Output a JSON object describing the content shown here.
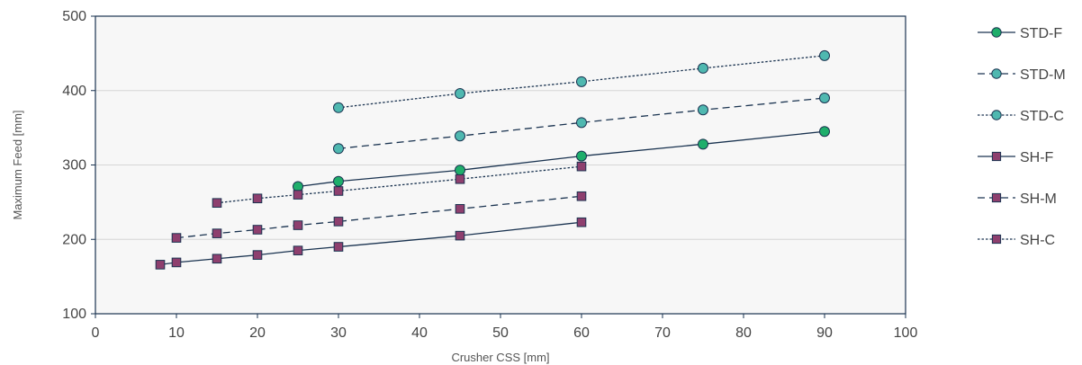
{
  "chart_data": {
    "type": "line",
    "title": "",
    "xlabel": "Crusher  CSS  [mm]",
    "ylabel": "Maximum Feed [mm]",
    "xlim": [
      0,
      100
    ],
    "ylim": [
      100,
      500
    ],
    "xticks": [
      0,
      10,
      20,
      30,
      40,
      50,
      60,
      70,
      80,
      90,
      100
    ],
    "yticks": [
      100,
      200,
      300,
      400,
      500
    ],
    "grid": "horizontal",
    "legend_position": "right",
    "plot_background": "#f7f7f7",
    "series": [
      {
        "name": "STD-F",
        "marker": "circle",
        "fill": "#1fae6b",
        "line_style": "solid",
        "line_color": "#1a3350",
        "x": [
          25,
          30,
          45,
          60,
          75,
          90
        ],
        "y": [
          271,
          278,
          293,
          312,
          328,
          345
        ]
      },
      {
        "name": "STD-M",
        "marker": "circle",
        "fill": "#4fb8b0",
        "line_style": "dashed",
        "line_color": "#1a3350",
        "x": [
          30,
          45,
          60,
          75,
          90
        ],
        "y": [
          322,
          339,
          357,
          374,
          390
        ]
      },
      {
        "name": "STD-C",
        "marker": "circle",
        "fill": "#4fb8b0",
        "line_style": "dotted",
        "line_color": "#1a3350",
        "x": [
          30,
          45,
          60,
          75,
          90
        ],
        "y": [
          377,
          396,
          412,
          430,
          447
        ]
      },
      {
        "name": "SH-F",
        "marker": "square",
        "fill": "#8e3f6e",
        "line_style": "solid",
        "line_color": "#1a3350",
        "x": [
          8,
          10,
          15,
          20,
          25,
          30,
          45,
          60
        ],
        "y": [
          166,
          169,
          174,
          179,
          185,
          190,
          205,
          223
        ]
      },
      {
        "name": "SH-M",
        "marker": "square",
        "fill": "#8e3f6e",
        "line_style": "dashed",
        "line_color": "#1a3350",
        "x": [
          10,
          15,
          20,
          25,
          30,
          45,
          60
        ],
        "y": [
          202,
          208,
          213,
          219,
          224,
          241,
          258
        ]
      },
      {
        "name": "SH-C",
        "marker": "square",
        "fill": "#8e3f6e",
        "line_style": "dotted",
        "line_color": "#1a3350",
        "x": [
          15,
          20,
          25,
          30,
          45,
          60
        ],
        "y": [
          249,
          255,
          260,
          265,
          281,
          298
        ]
      }
    ]
  }
}
